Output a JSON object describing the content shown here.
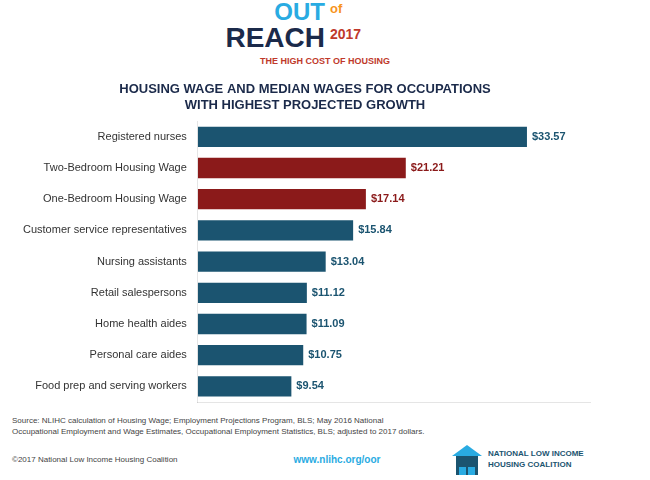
{
  "chart_data": {
    "type": "bar",
    "orientation": "horizontal",
    "title": [
      "HOUSING WAGE AND MEDIAN WAGES FOR OCCUPATIONS",
      "WITH HIGHEST PROJECTED GROWTH"
    ],
    "subtitle": "THE HIGH COST OF HOUSING",
    "annotations": [
      "OUT",
      "of",
      "REACH",
      "2017",
      "Source: NLIHC calculation of Housing Wage; Employment Projections Program, BLS; May 2016 National\nOccupational Employment and Wage Estimates, Occupational Employment Statistics, BLS; adjusted to 2017 dollars.",
      "©2017 National Low Income Housing Coalition",
      "www.nlihc.org/oor",
      "NATIONAL LOW INCOME",
      "HOUSING COALITION"
    ],
    "categories": [
      "Food prep and serving workers",
      "Personal care aides",
      "Home health aides",
      "Retail salespersons",
      "Nursing assistants",
      "Customer service representatives",
      "One-Bedroom Housing Wage",
      "Two-Bedroom Housing Wage",
      "Registered nurses"
    ],
    "values": [
      9.54,
      10.75,
      11.09,
      11.12,
      13.04,
      15.84,
      17.14,
      21.21,
      33.57
    ],
    "value_labels": [
      "$9.54",
      "$10.75",
      "$11.09",
      "$11.12",
      "$13.04",
      "$15.84",
      "$17.14",
      "$21.21",
      "$33.57"
    ],
    "colors": [
      "#1b5470",
      "#1b5470",
      "#1b5470",
      "#1b5470",
      "#1b5470",
      "#1b5470",
      "#8b1a1a",
      "#8b1a1a",
      "#1b5470"
    ],
    "xlim": [
      0,
      40
    ],
    "grid": false,
    "data_labels": true,
    "tick_labels": "y"
  }
}
